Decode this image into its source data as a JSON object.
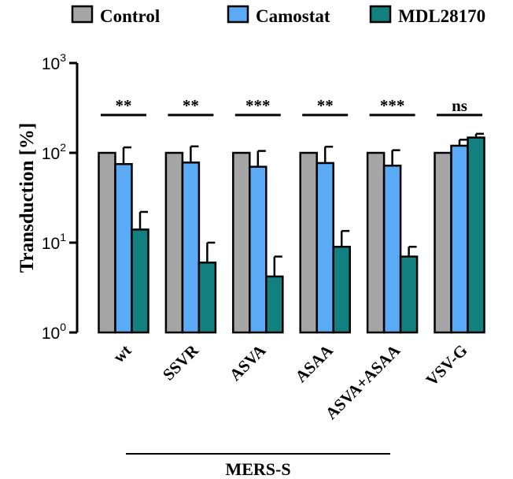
{
  "chart_data": {
    "type": "bar",
    "ylabel": "Transduction [%]",
    "yscale": "log",
    "ylim": [
      1,
      1000
    ],
    "yticks": [
      {
        "value": 1,
        "base": "10",
        "exp": "0"
      },
      {
        "value": 10,
        "base": "10",
        "exp": "1"
      },
      {
        "value": 100,
        "base": "10",
        "exp": "2"
      },
      {
        "value": 1000,
        "base": "10",
        "exp": "3"
      }
    ],
    "categories": [
      "wt",
      "SSVR",
      "ASVA",
      "ASAA",
      "ASVA+ASAA",
      "VSV-G"
    ],
    "group_label": "MERS-S",
    "group_categories": [
      "wt",
      "SSVR",
      "ASVA",
      "ASAA",
      "ASVA+ASAA"
    ],
    "significance": [
      "**",
      "**",
      "***",
      "**",
      "***",
      "ns"
    ],
    "legend_position": "top",
    "series": [
      {
        "name": "Control",
        "color": "#a6a6a6",
        "values": [
          100,
          100,
          100,
          100,
          100,
          100
        ],
        "error": [
          0,
          0,
          0,
          0,
          0,
          0
        ]
      },
      {
        "name": "Camostat",
        "color": "#5aaaf5",
        "values": [
          75,
          78,
          70,
          77,
          72,
          120
        ],
        "error": [
          40,
          40,
          35,
          40,
          35,
          20
        ]
      },
      {
        "name": "MDL28170",
        "color": "#138080",
        "values": [
          14,
          6,
          4.2,
          9,
          7,
          148
        ],
        "error": [
          8,
          4,
          2.8,
          4.5,
          2,
          15
        ]
      }
    ]
  }
}
